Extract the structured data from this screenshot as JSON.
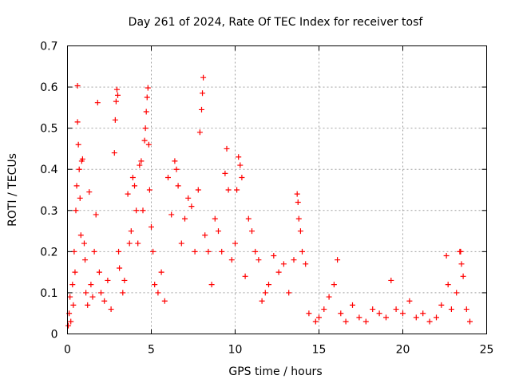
{
  "chart_data": {
    "type": "scatter",
    "title": "Day 261 of 2024, Rate Of TEC Index for receiver tosf",
    "xlabel": "GPS time / hours",
    "ylabel": "ROTI / TECUs",
    "xlim": [
      0,
      25
    ],
    "ylim": [
      0,
      0.7
    ],
    "xticks": [
      0,
      5,
      10,
      15,
      20,
      25
    ],
    "xtick_labels": [
      "0",
      "5",
      "10",
      "15",
      "20",
      "25"
    ],
    "yticks": [
      0,
      0.1,
      0.2,
      0.3,
      0.4,
      0.5,
      0.6,
      0.7
    ],
    "ytick_labels": [
      "0",
      "0.1",
      "0.2",
      "0.3",
      "0.4",
      "0.5",
      "0.6",
      "0.7"
    ],
    "grid": true,
    "marker": "+",
    "color": "#ff0000",
    "series": [
      {
        "name": "ROTI",
        "points": [
          [
            0.05,
            0.02
          ],
          [
            0.1,
            0.05
          ],
          [
            0.15,
            0.09
          ],
          [
            0.2,
            0.03
          ],
          [
            0.3,
            0.12
          ],
          [
            0.35,
            0.07
          ],
          [
            0.4,
            0.2
          ],
          [
            0.45,
            0.15
          ],
          [
            0.5,
            0.3
          ],
          [
            0.55,
            0.36
          ],
          [
            0.6,
            0.515
          ],
          [
            0.6,
            0.603
          ],
          [
            0.65,
            0.46
          ],
          [
            0.7,
            0.4
          ],
          [
            0.75,
            0.33
          ],
          [
            0.8,
            0.24
          ],
          [
            0.85,
            0.42
          ],
          [
            0.9,
            0.425
          ],
          [
            1.0,
            0.22
          ],
          [
            1.05,
            0.18
          ],
          [
            1.1,
            0.1
          ],
          [
            1.2,
            0.07
          ],
          [
            1.3,
            0.345
          ],
          [
            1.4,
            0.12
          ],
          [
            1.5,
            0.09
          ],
          [
            1.6,
            0.2
          ],
          [
            1.7,
            0.29
          ],
          [
            1.8,
            0.562
          ],
          [
            1.9,
            0.15
          ],
          [
            2.0,
            0.1
          ],
          [
            2.2,
            0.08
          ],
          [
            2.4,
            0.13
          ],
          [
            2.6,
            0.06
          ],
          [
            2.8,
            0.44
          ],
          [
            2.85,
            0.52
          ],
          [
            2.9,
            0.565
          ],
          [
            2.95,
            0.594
          ],
          [
            3.0,
            0.58
          ],
          [
            3.05,
            0.2
          ],
          [
            3.1,
            0.16
          ],
          [
            3.3,
            0.1
          ],
          [
            3.4,
            0.13
          ],
          [
            3.6,
            0.34
          ],
          [
            3.7,
            0.22
          ],
          [
            3.8,
            0.25
          ],
          [
            3.9,
            0.38
          ],
          [
            4.0,
            0.36
          ],
          [
            4.1,
            0.3
          ],
          [
            4.2,
            0.22
          ],
          [
            4.3,
            0.41
          ],
          [
            4.4,
            0.42
          ],
          [
            4.5,
            0.3
          ],
          [
            4.6,
            0.47
          ],
          [
            4.65,
            0.5
          ],
          [
            4.7,
            0.54
          ],
          [
            4.75,
            0.575
          ],
          [
            4.8,
            0.598
          ],
          [
            4.85,
            0.46
          ],
          [
            4.9,
            0.35
          ],
          [
            5.0,
            0.26
          ],
          [
            5.1,
            0.2
          ],
          [
            5.2,
            0.12
          ],
          [
            5.4,
            0.1
          ],
          [
            5.6,
            0.15
          ],
          [
            5.8,
            0.08
          ],
          [
            6.0,
            0.38
          ],
          [
            6.2,
            0.29
          ],
          [
            6.4,
            0.42
          ],
          [
            6.5,
            0.4
          ],
          [
            6.6,
            0.36
          ],
          [
            6.8,
            0.22
          ],
          [
            7.0,
            0.28
          ],
          [
            7.2,
            0.33
          ],
          [
            7.4,
            0.31
          ],
          [
            7.6,
            0.2
          ],
          [
            7.8,
            0.35
          ],
          [
            7.9,
            0.49
          ],
          [
            8.0,
            0.545
          ],
          [
            8.05,
            0.585
          ],
          [
            8.1,
            0.623
          ],
          [
            8.2,
            0.24
          ],
          [
            8.4,
            0.2
          ],
          [
            8.6,
            0.12
          ],
          [
            8.8,
            0.28
          ],
          [
            9.0,
            0.25
          ],
          [
            9.2,
            0.2
          ],
          [
            9.4,
            0.39
          ],
          [
            9.5,
            0.45
          ],
          [
            9.6,
            0.35
          ],
          [
            9.8,
            0.18
          ],
          [
            10.0,
            0.22
          ],
          [
            10.1,
            0.35
          ],
          [
            10.2,
            0.43
          ],
          [
            10.3,
            0.41
          ],
          [
            10.4,
            0.38
          ],
          [
            10.6,
            0.14
          ],
          [
            10.8,
            0.28
          ],
          [
            11.0,
            0.25
          ],
          [
            11.2,
            0.2
          ],
          [
            11.4,
            0.18
          ],
          [
            11.6,
            0.08
          ],
          [
            11.8,
            0.1
          ],
          [
            12.0,
            0.12
          ],
          [
            12.3,
            0.19
          ],
          [
            12.6,
            0.15
          ],
          [
            12.9,
            0.17
          ],
          [
            13.2,
            0.1
          ],
          [
            13.5,
            0.18
          ],
          [
            13.7,
            0.34
          ],
          [
            13.75,
            0.32
          ],
          [
            13.8,
            0.28
          ],
          [
            13.9,
            0.25
          ],
          [
            14.0,
            0.2
          ],
          [
            14.2,
            0.17
          ],
          [
            14.4,
            0.05
          ],
          [
            14.8,
            0.03
          ],
          [
            15.0,
            0.04
          ],
          [
            15.3,
            0.06
          ],
          [
            15.6,
            0.09
          ],
          [
            15.9,
            0.12
          ],
          [
            16.1,
            0.18
          ],
          [
            16.3,
            0.05
          ],
          [
            16.6,
            0.03
          ],
          [
            17.0,
            0.07
          ],
          [
            17.4,
            0.04
          ],
          [
            17.8,
            0.03
          ],
          [
            18.2,
            0.06
          ],
          [
            18.6,
            0.05
          ],
          [
            19.0,
            0.04
          ],
          [
            19.3,
            0.13
          ],
          [
            19.6,
            0.06
          ],
          [
            20.0,
            0.05
          ],
          [
            20.4,
            0.08
          ],
          [
            20.8,
            0.04
          ],
          [
            21.2,
            0.05
          ],
          [
            21.6,
            0.03
          ],
          [
            22.0,
            0.04
          ],
          [
            22.3,
            0.07
          ],
          [
            22.6,
            0.19
          ],
          [
            22.7,
            0.12
          ],
          [
            22.9,
            0.06
          ],
          [
            23.2,
            0.1
          ],
          [
            23.4,
            0.2
          ],
          [
            23.45,
            0.2
          ],
          [
            23.5,
            0.17
          ],
          [
            23.6,
            0.14
          ],
          [
            23.8,
            0.06
          ],
          [
            24.0,
            0.03
          ]
        ]
      }
    ]
  }
}
